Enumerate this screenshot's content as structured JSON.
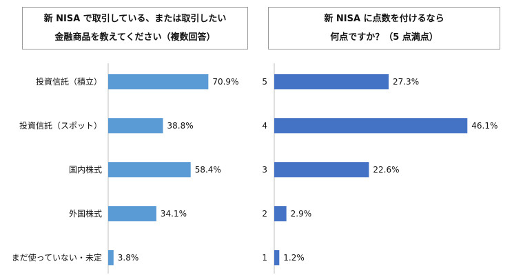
{
  "chart_data": [
    {
      "type": "bar",
      "title_lines": [
        "新 NISA で取引している、または取引したい",
        "金融商品を教えてください（複数回答）"
      ],
      "categories": [
        "投資信託（積立）",
        "投資信託（スポット）",
        "国内株式",
        "外国株式",
        "まだ使っていない・未定"
      ],
      "values": [
        70.9,
        38.8,
        58.4,
        34.1,
        3.8
      ],
      "value_labels": [
        "70.9%",
        "38.8%",
        "58.4%",
        "34.1%",
        "3.8%"
      ],
      "unit": "%",
      "orientation": "horizontal",
      "xlim": [
        0,
        100
      ],
      "grid": false,
      "legend": "none",
      "bar_color": "#5b9bd5"
    },
    {
      "type": "bar",
      "title_lines": [
        "新 NISA に点数を付けるなら",
        "何点ですか？（5 点満点）"
      ],
      "categories": [
        "5",
        "4",
        "3",
        "2",
        "1"
      ],
      "values": [
        27.3,
        46.1,
        22.6,
        2.9,
        1.2
      ],
      "value_labels": [
        "27.3%",
        "46.1%",
        "22.6%",
        "2.9%",
        "1.2%"
      ],
      "unit": "%",
      "orientation": "horizontal",
      "xlim": [
        0,
        60
      ],
      "grid": false,
      "legend": "none",
      "bar_color": "#4472c4"
    }
  ]
}
